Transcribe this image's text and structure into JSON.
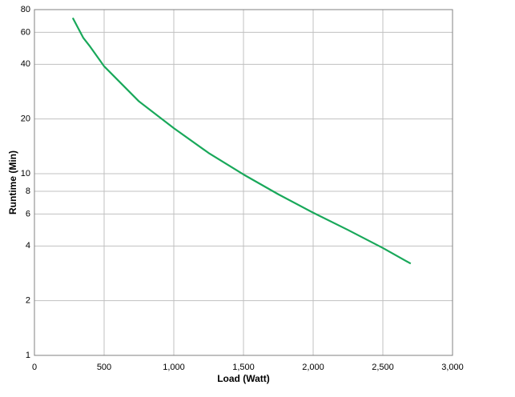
{
  "chart_data": {
    "type": "line",
    "x_label": "Load (Watt)",
    "y_label": "Runtime (Min)",
    "x": [
      275,
      350,
      400,
      500,
      750,
      1000,
      1250,
      1500,
      1750,
      2000,
      2250,
      2500,
      2700
    ],
    "series": [
      {
        "color": "#19a85a",
        "values": [
          72,
          56,
          50,
          39,
          25,
          17.8,
          13,
          9.9,
          7.7,
          6.1,
          4.9,
          3.9,
          3.2
        ]
      }
    ],
    "xlim": [
      0,
      3000
    ],
    "xticks": [
      0,
      500,
      {
        "value": 1000,
        "label": "1,000"
      },
      {
        "value": 1500,
        "label": "1,500"
      },
      {
        "value": 2000,
        "label": "2,000"
      },
      {
        "value": 2500,
        "label": "2,500"
      },
      {
        "value": 3000,
        "label": "3,000"
      }
    ],
    "ylim": [
      1,
      80
    ],
    "y_log": true,
    "yticks": [
      1,
      2,
      4,
      6,
      8,
      10,
      20,
      40,
      60,
      80
    ],
    "grid": true
  }
}
